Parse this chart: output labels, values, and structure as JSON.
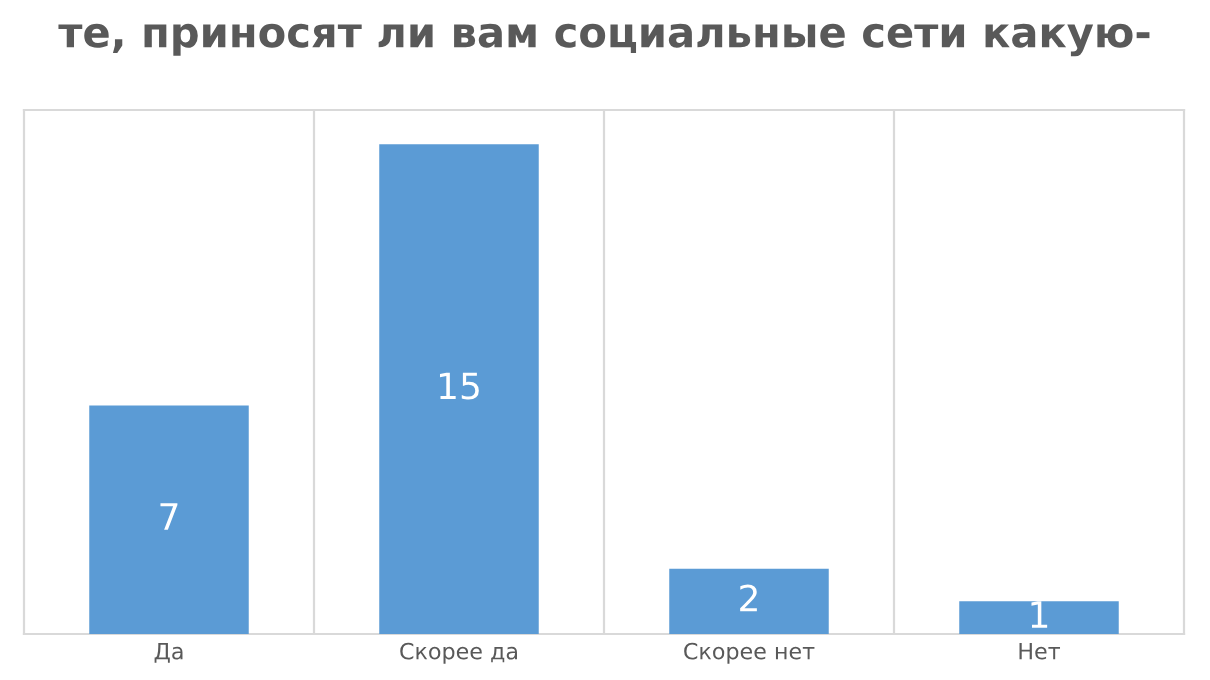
{
  "chart_data": {
    "type": "bar",
    "title": "те, приносят ли вам социальные сети какую-",
    "categories": [
      "Да",
      "Скорее да",
      "Скорее нет",
      "Нет"
    ],
    "values": [
      7,
      15,
      2,
      1
    ],
    "color": "#5b9bd5",
    "data_labels": true,
    "grid": "x",
    "tick_labels": "x"
  }
}
